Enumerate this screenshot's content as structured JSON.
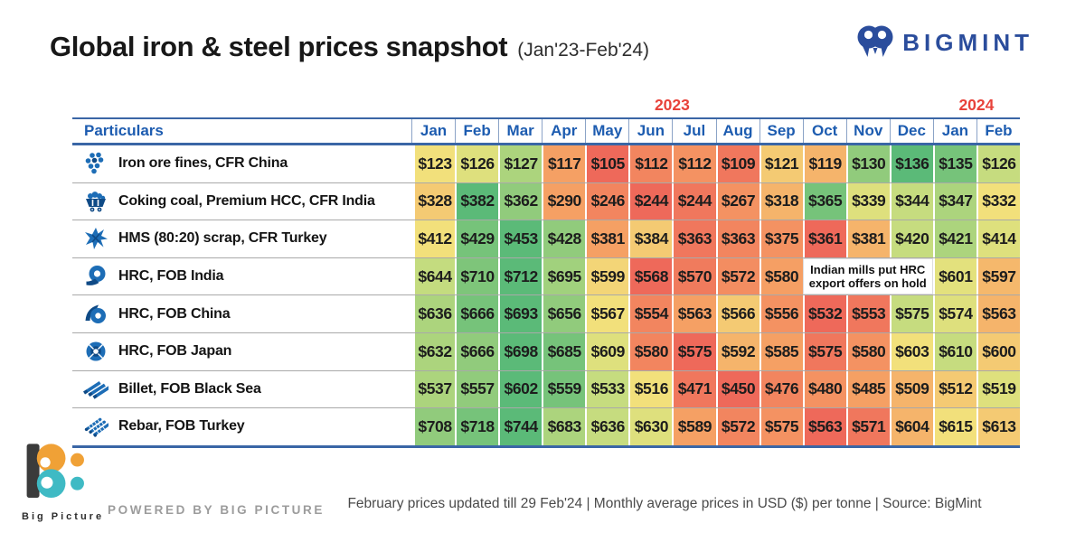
{
  "header": {
    "title": "Global iron & steel prices snapshot",
    "subtitle": "(Jan'23-Feb'24)"
  },
  "brand": {
    "name": "BIGMINT"
  },
  "table": {
    "corner_label": "Particulars",
    "year2023": "2023",
    "year2024": "2024",
    "months": [
      "Jan",
      "Feb",
      "Mar",
      "Apr",
      "May",
      "Jun",
      "Jul",
      "Aug",
      "Sep",
      "Oct",
      "Nov",
      "Dec",
      "Jan",
      "Feb"
    ],
    "rows": [
      {
        "icon": "iron-ore-icon",
        "label": "Iron ore fines, CFR China",
        "values": [
          "$123",
          "$126",
          "$127",
          "$117",
          "$105",
          "$112",
          "$112",
          "$109",
          "$121",
          "$119",
          "$130",
          "$136",
          "$135",
          "$126"
        ]
      },
      {
        "icon": "coal-cart-icon",
        "label": "Coking coal, Premium HCC, CFR India",
        "values": [
          "$328",
          "$382",
          "$362",
          "$290",
          "$246",
          "$244",
          "$244",
          "$267",
          "$318",
          "$365",
          "$339",
          "$344",
          "$347",
          "$332"
        ]
      },
      {
        "icon": "scrap-icon",
        "label": "HMS (80:20) scrap, CFR Turkey",
        "values": [
          "$412",
          "$429",
          "$453",
          "$428",
          "$381",
          "$384",
          "$363",
          "$363",
          "$375",
          "$361",
          "$381",
          "$420",
          "$421",
          "$414"
        ]
      },
      {
        "icon": "hrc-coil-icon",
        "label": "HRC, FOB India",
        "values": [
          "$644",
          "$710",
          "$712",
          "$695",
          "$599",
          "$568",
          "$570",
          "$572",
          "$580",
          "",
          "",
          "",
          "$601",
          "$597"
        ],
        "note_text": "Indian mills put HRC export offers on hold",
        "note_start": 9,
        "note_span": 3
      },
      {
        "icon": "hrc-unroll-icon",
        "label": "HRC, FOB China",
        "values": [
          "$636",
          "$666",
          "$693",
          "$656",
          "$567",
          "$554",
          "$563",
          "$566",
          "$556",
          "$532",
          "$553",
          "$575",
          "$574",
          "$563"
        ]
      },
      {
        "icon": "hrc-end-icon",
        "label": "HRC, FOB Japan",
        "values": [
          "$632",
          "$666",
          "$698",
          "$685",
          "$609",
          "$580",
          "$575",
          "$592",
          "$585",
          "$575",
          "$580",
          "$603",
          "$610",
          "$600"
        ]
      },
      {
        "icon": "billet-icon",
        "label": "Billet, FOB Black Sea",
        "values": [
          "$537",
          "$557",
          "$602",
          "$559",
          "$533",
          "$516",
          "$471",
          "$450",
          "$476",
          "$480",
          "$485",
          "$509",
          "$512",
          "$519"
        ]
      },
      {
        "icon": "rebar-icon",
        "label": "Rebar, FOB Turkey",
        "values": [
          "$708",
          "$718",
          "$744",
          "$683",
          "$636",
          "$630",
          "$589",
          "$572",
          "$575",
          "$563",
          "$571",
          "$604",
          "$615",
          "$613"
        ]
      }
    ],
    "heat_scale": [
      {
        "t": 0.0,
        "c": "#ee695a"
      },
      {
        "t": 0.33,
        "c": "#f6a465"
      },
      {
        "t": 0.55,
        "c": "#f2e37c"
      },
      {
        "t": 0.7,
        "c": "#c4dc7f"
      },
      {
        "t": 1.0,
        "c": "#5bba78"
      }
    ]
  },
  "colors": {
    "header_blue": "#1d5cb0",
    "border_blue": "#3a66a6",
    "year_red": "#e8423a",
    "brand_navy": "#2b4d9c",
    "icon_blue": "#1d6db6",
    "icon_dark_blue": "#0f4a86",
    "bp_orange": "#f0a136",
    "bp_teal": "#3fbac4",
    "bp_dark": "#3b3b3b"
  },
  "footer": {
    "note_line": "February prices updated till 29 Feb'24  |  Monthly average prices in USD ($) per tonne  |  Source: BigMint",
    "powered_by": "POWERED BY BIG PICTURE",
    "brand_caption": "Big Picture"
  },
  "chart_data": {
    "type": "heatmap",
    "title": "Global iron & steel prices snapshot (Jan'23-Feb'24)",
    "unit": "USD per tonne, monthly average",
    "x": [
      "Jan'23",
      "Feb'23",
      "Mar'23",
      "Apr'23",
      "May'23",
      "Jun'23",
      "Jul'23",
      "Aug'23",
      "Sep'23",
      "Oct'23",
      "Nov'23",
      "Dec'23",
      "Jan'24",
      "Feb'24"
    ],
    "series": [
      {
        "name": "Iron ore fines, CFR China",
        "values": [
          123,
          126,
          127,
          117,
          105,
          112,
          112,
          109,
          121,
          119,
          130,
          136,
          135,
          126
        ]
      },
      {
        "name": "Coking coal, Premium HCC, CFR India",
        "values": [
          328,
          382,
          362,
          290,
          246,
          244,
          244,
          267,
          318,
          365,
          339,
          344,
          347,
          332
        ]
      },
      {
        "name": "HMS (80:20) scrap, CFR Turkey",
        "values": [
          412,
          429,
          453,
          428,
          381,
          384,
          363,
          363,
          375,
          361,
          381,
          420,
          421,
          414
        ]
      },
      {
        "name": "HRC, FOB India",
        "values": [
          644,
          710,
          712,
          695,
          599,
          568,
          570,
          572,
          580,
          null,
          null,
          null,
          601,
          597
        ],
        "annotation": "Indian mills put HRC export offers on hold (Oct-Dec'23)"
      },
      {
        "name": "HRC, FOB China",
        "values": [
          636,
          666,
          693,
          656,
          567,
          554,
          563,
          566,
          556,
          532,
          553,
          575,
          574,
          563
        ]
      },
      {
        "name": "HRC, FOB Japan",
        "values": [
          632,
          666,
          698,
          685,
          609,
          580,
          575,
          592,
          585,
          575,
          580,
          603,
          610,
          600
        ]
      },
      {
        "name": "Billet, FOB Black Sea",
        "values": [
          537,
          557,
          602,
          559,
          533,
          516,
          471,
          450,
          476,
          480,
          485,
          509,
          512,
          519
        ]
      },
      {
        "name": "Rebar, FOB Turkey",
        "values": [
          708,
          718,
          744,
          683,
          636,
          630,
          589,
          572,
          575,
          563,
          571,
          604,
          615,
          613
        ]
      }
    ],
    "legend_position": "none",
    "grid": true,
    "color_mapping": "per-row rank, red (low) to yellow to green (high)"
  }
}
